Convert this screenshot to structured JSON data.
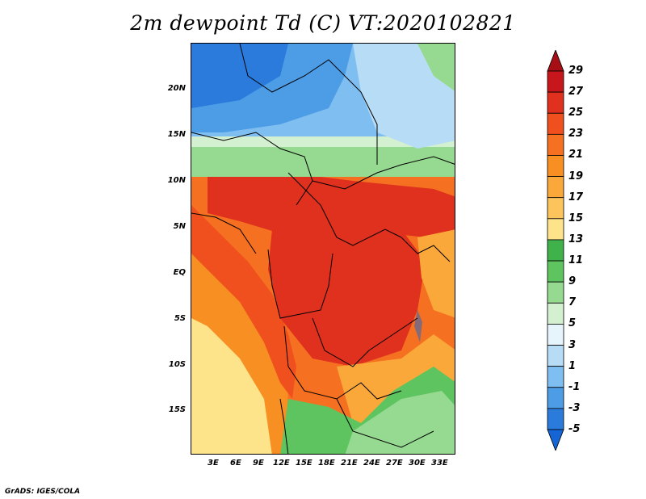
{
  "title": "2m dewpoint Td (C) VT:2020102821",
  "credit": "GrADS: IGES/COLA",
  "map": {
    "lat_labels": [
      "20N",
      "15N",
      "10N",
      "5N",
      "EQ",
      "5S",
      "10S",
      "15S"
    ],
    "lon_labels": [
      "3E",
      "6E",
      "9E",
      "12E",
      "15E",
      "18E",
      "21E",
      "24E",
      "27E",
      "30E",
      "33E"
    ]
  },
  "colorbar": {
    "labels": [
      "29",
      "27",
      "25",
      "23",
      "21",
      "19",
      "17",
      "15",
      "13",
      "11",
      "9",
      "7",
      "5",
      "3",
      "1",
      "-1",
      "-3",
      "-5"
    ],
    "colors": [
      "#a50f15",
      "#c8161d",
      "#e0301e",
      "#f0501e",
      "#f57020",
      "#f88f22",
      "#faa83a",
      "#fcc45c",
      "#fde38a",
      "#3fb24b",
      "#5dc460",
      "#96d990",
      "#d3f0d0",
      "#e6f5fb",
      "#b7dcf5",
      "#7fbef0",
      "#4d9ce6",
      "#2a7bdc",
      "#1565d4"
    ]
  }
}
